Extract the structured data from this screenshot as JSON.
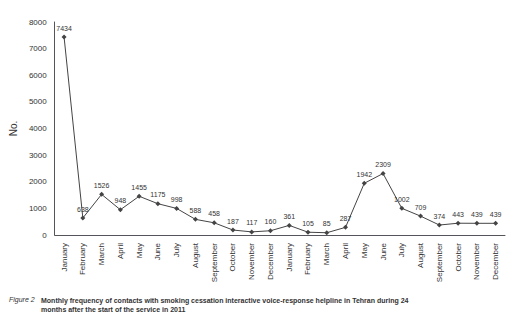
{
  "chart_data": {
    "type": "line",
    "title": "Figure 2",
    "subtitle": "Monthly frequency of contacts with smoking cessation interactive voice-response helpline in Tehran during 24\nmonths after the start of the service in 2011",
    "ylabel": "No.",
    "categories": [
      "January",
      "February",
      "March",
      "April",
      "May",
      "June",
      "July",
      "August",
      "September",
      "October",
      "November",
      "December",
      "January",
      "February",
      "March",
      "April",
      "May",
      "June",
      "July",
      "August",
      "September",
      "October",
      "November",
      "December"
    ],
    "values": [
      7434,
      638,
      1526,
      948,
      1455,
      1175,
      998,
      588,
      458,
      187,
      117,
      160,
      361,
      105,
      85,
      287,
      1942,
      2309,
      1002,
      709,
      374,
      443,
      439,
      439
    ],
    "color": "#444444",
    "marker": "diamond",
    "ylim": [
      0,
      8000
    ],
    "yticks": [
      0,
      1000,
      2000,
      3000,
      4000,
      5000,
      6000,
      7000,
      8000
    ],
    "grid": false,
    "data_labels": true
  }
}
